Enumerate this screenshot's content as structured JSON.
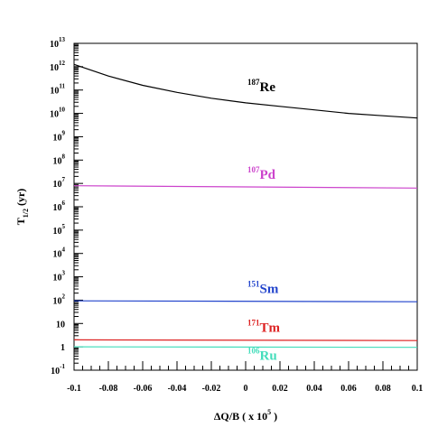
{
  "chart_data": {
    "type": "line",
    "xlabel": "ΔQ/B  ( x 10",
    "xlabel_sup": "5",
    "xlabel_close": " )",
    "ylabel_main": "T",
    "ylabel_sub": "1/2",
    "ylabel_unit": " (yr)",
    "y_scale": "log",
    "xlim": [
      -0.1,
      0.1
    ],
    "ylim_exponent": [
      -1,
      13
    ],
    "x_ticks": [
      {
        "value": -0.1,
        "label": "-0.1"
      },
      {
        "value": -0.08,
        "label": "-0.08"
      },
      {
        "value": -0.06,
        "label": "-0.06"
      },
      {
        "value": -0.04,
        "label": "-0.04"
      },
      {
        "value": -0.02,
        "label": "-0.02"
      },
      {
        "value": 0,
        "label": "0"
      },
      {
        "value": 0.02,
        "label": "0.02"
      },
      {
        "value": 0.04,
        "label": "0.04"
      },
      {
        "value": 0.06,
        "label": "0.06"
      },
      {
        "value": 0.08,
        "label": "0.08"
      },
      {
        "value": 0.1,
        "label": "0.1"
      }
    ],
    "y_ticks": [
      {
        "exp": -1,
        "base": "10",
        "sup": "-1"
      },
      {
        "exp": 0,
        "base": "1",
        "sup": ""
      },
      {
        "exp": 1,
        "base": "10",
        "sup": ""
      },
      {
        "exp": 2,
        "base": "10",
        "sup": "2"
      },
      {
        "exp": 3,
        "base": "10",
        "sup": "3"
      },
      {
        "exp": 4,
        "base": "10",
        "sup": "4"
      },
      {
        "exp": 5,
        "base": "10",
        "sup": "5"
      },
      {
        "exp": 6,
        "base": "10",
        "sup": "6"
      },
      {
        "exp": 7,
        "base": "10",
        "sup": "7"
      },
      {
        "exp": 8,
        "base": "10",
        "sup": "8"
      },
      {
        "exp": 9,
        "base": "10",
        "sup": "9"
      },
      {
        "exp": 10,
        "base": "10",
        "sup": "10"
      },
      {
        "exp": 11,
        "base": "10",
        "sup": "11"
      },
      {
        "exp": 12,
        "base": "10",
        "sup": "12"
      },
      {
        "exp": 13,
        "base": "10",
        "sup": "13"
      }
    ],
    "series": [
      {
        "name": "Re",
        "mass": "187",
        "color": "#000000",
        "x": [
          -0.1,
          -0.08,
          -0.06,
          -0.04,
          -0.02,
          0,
          0.02,
          0.04,
          0.06,
          0.08,
          0.1
        ],
        "y_log10": [
          12.1,
          11.6,
          11.2,
          10.9,
          10.65,
          10.45,
          10.3,
          10.15,
          10.0,
          9.9,
          9.8
        ],
        "label_x": 0.0,
        "label_y_log10": 10.95
      },
      {
        "name": "Pd",
        "mass": "107",
        "color": "#cc44cc",
        "x": [
          -0.1,
          0.1
        ],
        "y_log10": [
          6.9,
          6.8
        ],
        "label_x": 0.0,
        "label_y_log10": 7.2
      },
      {
        "name": "Sm",
        "mass": "151",
        "color": "#2244cc",
        "x": [
          -0.1,
          0.1
        ],
        "y_log10": [
          1.97,
          1.93
        ],
        "label_x": 0.0,
        "label_y_log10": 2.3
      },
      {
        "name": "Tm",
        "mass": "171",
        "color": "#dd2222",
        "x": [
          -0.1,
          0.1
        ],
        "y_log10": [
          0.3,
          0.27
        ],
        "label_x": 0.0,
        "label_y_log10": 0.65
      },
      {
        "name": "Ru",
        "mass": "106",
        "color": "#44ddbb",
        "x": [
          -0.1,
          0.1
        ],
        "y_log10": [
          0.0,
          -0.02
        ],
        "label_x": 0.0,
        "label_y_log10": -0.55
      }
    ]
  }
}
